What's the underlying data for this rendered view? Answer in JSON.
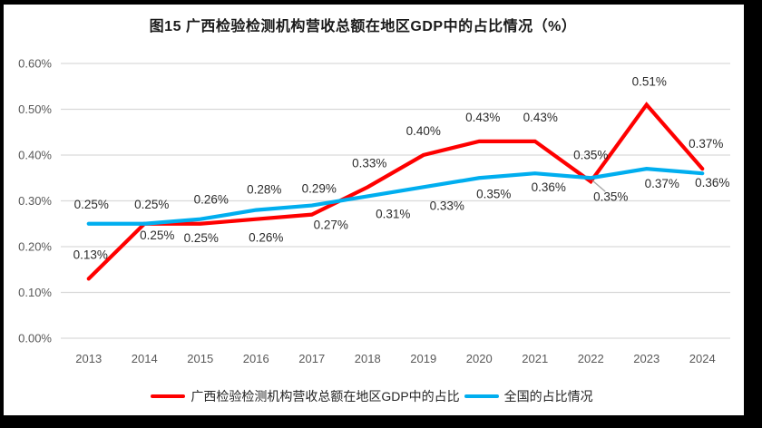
{
  "title": "图15 广西检验检测机构营收总额在地区GDP中的占比情况（%）",
  "chart_data": {
    "type": "line",
    "categories": [
      "2013",
      "2014",
      "2015",
      "2016",
      "2017",
      "2018",
      "2019",
      "2020",
      "2021",
      "2022",
      "2023",
      "2024"
    ],
    "series": [
      {
        "name": "广西检验检测机构营收总额在地区GDP中的占比",
        "color": "#FE0000",
        "values": [
          0.13,
          0.25,
          0.25,
          0.26,
          0.27,
          0.33,
          0.4,
          0.43,
          0.43,
          0.35,
          0.51,
          0.37
        ],
        "labels": [
          {
            "text": "0.13%",
            "pos": "above",
            "dx": 2,
            "dy": -4
          },
          {
            "text": "0.25%",
            "pos": "below",
            "dx": 14,
            "dy": -8
          },
          {
            "text": "0.25%",
            "pos": "below",
            "dx": 1,
            "dy": -5
          },
          {
            "text": "0.26%",
            "pos": "below",
            "dx": 11,
            "dy": 0
          },
          {
            "text": "0.27%",
            "pos": "below",
            "dx": 21,
            "dy": -9
          },
          {
            "text": "0.33%",
            "pos": "above",
            "dx": 2,
            "dy": -4
          },
          {
            "text": "0.40%",
            "pos": "above",
            "dx": 0,
            "dy": -4
          },
          {
            "text": "0.43%",
            "pos": "above",
            "dx": 4,
            "dy": -4
          },
          {
            "text": "0.43%",
            "pos": "above",
            "dx": 6,
            "dy": -4
          },
          {
            "text": "0.35%",
            "pos": "above",
            "dx": 0,
            "dy": -3
          },
          {
            "text": "0.51%",
            "pos": "above",
            "dx": 3,
            "dy": -3
          },
          {
            "text": "0.37%",
            "pos": "above",
            "dx": 4,
            "dy": -5
          }
        ]
      },
      {
        "name": "全国的占比情况",
        "color": "#00AEEF",
        "values": [
          0.25,
          0.25,
          0.26,
          0.28,
          0.29,
          0.31,
          0.33,
          0.35,
          0.36,
          0.35,
          0.37,
          0.36
        ],
        "labels": [
          {
            "text": "0.25%",
            "pos": "above",
            "dx": 3,
            "dy": 1
          },
          {
            "text": "0.25%",
            "pos": "above",
            "dx": 8,
            "dy": 1
          },
          {
            "text": "0.26%",
            "pos": "above",
            "dx": 12,
            "dy": 1
          },
          {
            "text": "0.28%",
            "pos": "above",
            "dx": 9,
            "dy": 0
          },
          {
            "text": "0.29%",
            "pos": "above",
            "dx": 8,
            "dy": 4
          },
          {
            "text": "0.31%",
            "pos": "below",
            "dx": 28,
            "dy": -1
          },
          {
            "text": "0.33%",
            "pos": "below",
            "dx": 26,
            "dy": 0
          },
          {
            "text": "0.35%",
            "pos": "below",
            "dx": 16,
            "dy": -3
          },
          {
            "text": "0.36%",
            "pos": "below",
            "dx": 15,
            "dy": -5
          },
          {
            "text": "0.35%",
            "pos": "below",
            "dx": 22,
            "dy": 0,
            "leader": true
          },
          {
            "text": "0.37%",
            "pos": "below",
            "dx": 17,
            "dy": -4
          },
          {
            "text": "0.36%",
            "pos": "below",
            "dx": 11,
            "dy": -10
          }
        ]
      }
    ],
    "ylim": [
      0,
      0.6
    ],
    "yticks": [
      0,
      0.1,
      0.2,
      0.3,
      0.4,
      0.5,
      0.6
    ],
    "ytick_labels": [
      "0.00%",
      "0.10%",
      "0.20%",
      "0.30%",
      "0.40%",
      "0.50%",
      "0.60%"
    ],
    "grid": true,
    "legend_position": "bottom",
    "colors": {
      "gridline": "#D9D9D9",
      "axis_text": "#595959",
      "label_text": "#2B2B2B",
      "leader_line": "#A6A6A6",
      "frame_border": "#000000"
    }
  }
}
